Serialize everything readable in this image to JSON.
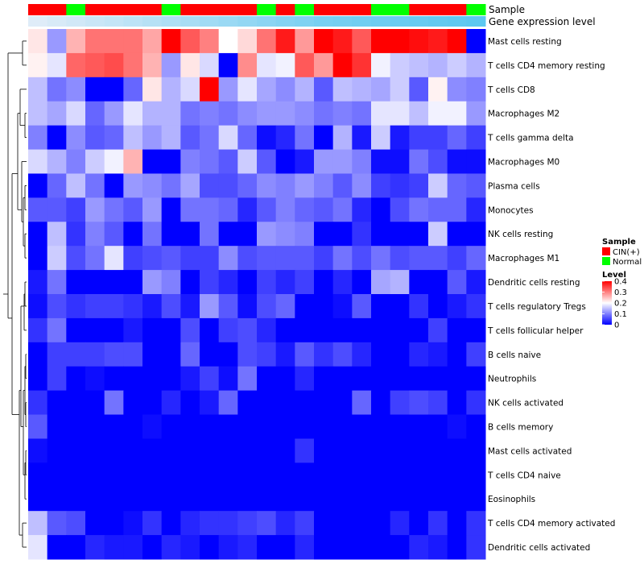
{
  "chart_data": {
    "type": "heatmap",
    "title": "",
    "annotations": {
      "sample": {
        "label": "Sample",
        "values": [
          "CIN(+)",
          "CIN(+)",
          "Normal",
          "CIN(+)",
          "CIN(+)",
          "CIN(+)",
          "CIN(+)",
          "Normal",
          "CIN(+)",
          "CIN(+)",
          "CIN(+)",
          "CIN(+)",
          "Normal",
          "CIN(+)",
          "Normal",
          "CIN(+)",
          "CIN(+)",
          "CIN(+)",
          "Normal",
          "Normal",
          "CIN(+)",
          "CIN(+)",
          "CIN(+)",
          "Normal"
        ]
      },
      "gene_expression": {
        "label": "Gene expression level",
        "values": [
          0.05,
          0.1,
          0.15,
          0.2,
          0.25,
          0.3,
          0.35,
          0.4,
          0.45,
          0.5,
          0.55,
          0.6,
          0.65,
          0.7,
          0.75,
          0.8,
          0.82,
          0.85,
          0.88,
          0.9,
          0.92,
          0.95,
          0.97,
          1.0
        ]
      }
    },
    "rows": [
      "Mast cells resting",
      "T cells CD4 memory resting",
      "T cells CD8",
      "Macrophages M2",
      "T cells gamma delta",
      "Macrophages M0",
      "Plasma cells",
      "Monocytes",
      "NK cells resting",
      "Macrophages M1",
      "Dendritic cells resting",
      "T cells regulatory  Tregs",
      "T cells follicular helper",
      "B cells naive",
      "Neutrophils",
      "NK cells activated",
      "B cells memory",
      "Mast cells activated",
      "T cells CD4 naive",
      "Eosinophils",
      "T cells CD4 memory activated",
      "Dendritic cells activated"
    ],
    "values": [
      [
        0.22,
        0.12,
        0.26,
        0.31,
        0.31,
        0.31,
        0.27,
        0.4,
        0.33,
        0.3,
        0.2,
        0.23,
        0.31,
        0.38,
        0.28,
        0.4,
        0.38,
        0.33,
        0.4,
        0.4,
        0.39,
        0.38,
        0.4,
        0.0
      ],
      [
        0.21,
        0.18,
        0.32,
        0.33,
        0.34,
        0.31,
        0.26,
        0.12,
        0.22,
        0.17,
        0.0,
        0.29,
        0.18,
        0.19,
        0.33,
        0.28,
        0.4,
        0.36,
        0.19,
        0.16,
        0.15,
        0.14,
        0.16,
        0.14
      ],
      [
        0.15,
        0.09,
        0.11,
        0.0,
        0.0,
        0.08,
        0.22,
        0.14,
        0.17,
        0.4,
        0.12,
        0.18,
        0.13,
        0.11,
        0.14,
        0.07,
        0.15,
        0.14,
        0.13,
        0.16,
        0.07,
        0.21,
        0.11,
        0.1
      ],
      [
        0.15,
        0.13,
        0.17,
        0.08,
        0.12,
        0.18,
        0.14,
        0.14,
        0.09,
        0.1,
        0.09,
        0.11,
        0.12,
        0.12,
        0.11,
        0.09,
        0.1,
        0.09,
        0.18,
        0.18,
        0.15,
        0.19,
        0.19,
        0.12
      ],
      [
        0.1,
        0.0,
        0.11,
        0.07,
        0.08,
        0.15,
        0.12,
        0.14,
        0.07,
        0.09,
        0.17,
        0.08,
        0.01,
        0.03,
        0.09,
        0.0,
        0.14,
        0.02,
        0.16,
        0.02,
        0.05,
        0.05,
        0.08,
        0.05
      ],
      [
        0.17,
        0.14,
        0.1,
        0.16,
        0.19,
        0.26,
        0.0,
        0.0,
        0.1,
        0.09,
        0.07,
        0.16,
        0.07,
        0.0,
        0.02,
        0.12,
        0.12,
        0.1,
        0.01,
        0.01,
        0.09,
        0.06,
        0.01,
        0.01
      ],
      [
        0.0,
        0.08,
        0.15,
        0.09,
        0.0,
        0.12,
        0.11,
        0.09,
        0.13,
        0.06,
        0.06,
        0.08,
        0.11,
        0.1,
        0.12,
        0.1,
        0.07,
        0.11,
        0.05,
        0.04,
        0.05,
        0.16,
        0.08,
        0.07
      ],
      [
        0.07,
        0.07,
        0.05,
        0.12,
        0.09,
        0.07,
        0.12,
        0.0,
        0.09,
        0.09,
        0.08,
        0.03,
        0.07,
        0.1,
        0.08,
        0.07,
        0.09,
        0.03,
        0.0,
        0.06,
        0.09,
        0.08,
        0.08,
        0.03
      ],
      [
        0.0,
        0.15,
        0.04,
        0.1,
        0.07,
        0.0,
        0.09,
        0.0,
        0.0,
        0.09,
        0.0,
        0.0,
        0.12,
        0.11,
        0.1,
        0.0,
        0.0,
        0.04,
        0.0,
        0.0,
        0.0,
        0.16,
        0.0,
        0.0
      ],
      [
        0.0,
        0.16,
        0.06,
        0.09,
        0.18,
        0.05,
        0.06,
        0.07,
        0.05,
        0.05,
        0.11,
        0.06,
        0.07,
        0.07,
        0.07,
        0.05,
        0.09,
        0.06,
        0.09,
        0.06,
        0.07,
        0.07,
        0.05,
        0.08
      ],
      [
        0.02,
        0.09,
        0.0,
        0.0,
        0.0,
        0.0,
        0.12,
        0.1,
        0.0,
        0.05,
        0.03,
        0.0,
        0.05,
        0.03,
        0.05,
        0.0,
        0.03,
        0.0,
        0.13,
        0.14,
        0.0,
        0.0,
        0.07,
        0.02
      ],
      [
        0.01,
        0.06,
        0.04,
        0.05,
        0.05,
        0.04,
        0.02,
        0.06,
        0.02,
        0.12,
        0.07,
        0.01,
        0.06,
        0.08,
        0.0,
        0.0,
        0.01,
        0.07,
        0.0,
        0.0,
        0.04,
        0.0,
        0.02,
        0.04
      ],
      [
        0.04,
        0.09,
        0.0,
        0.0,
        0.0,
        0.02,
        0.0,
        0.0,
        0.06,
        0.0,
        0.05,
        0.06,
        0.03,
        0.0,
        0.0,
        0.0,
        0.0,
        0.0,
        0.0,
        0.0,
        0.0,
        0.05,
        0.0,
        0.0
      ],
      [
        0.0,
        0.05,
        0.05,
        0.05,
        0.06,
        0.06,
        0.0,
        0.0,
        0.08,
        0.0,
        0.0,
        0.06,
        0.05,
        0.02,
        0.07,
        0.04,
        0.06,
        0.03,
        0.0,
        0.0,
        0.03,
        0.02,
        0.0,
        0.05
      ],
      [
        0.0,
        0.05,
        0.0,
        0.01,
        0.0,
        0.0,
        0.0,
        0.0,
        0.02,
        0.05,
        0.01,
        0.09,
        0.0,
        0.0,
        0.03,
        0.0,
        0.0,
        0.0,
        0.0,
        0.0,
        0.0,
        0.0,
        0.0,
        0.0
      ],
      [
        0.04,
        0.0,
        0.0,
        0.0,
        0.09,
        0.0,
        0.0,
        0.03,
        0.0,
        0.02,
        0.08,
        0.0,
        0.0,
        0.0,
        0.0,
        0.0,
        0.0,
        0.08,
        0.0,
        0.05,
        0.06,
        0.05,
        0.0,
        0.04
      ],
      [
        0.07,
        0.0,
        0.0,
        0.0,
        0.0,
        0.0,
        0.01,
        0.0,
        0.0,
        0.0,
        0.0,
        0.0,
        0.0,
        0.0,
        0.0,
        0.0,
        0.0,
        0.0,
        0.0,
        0.0,
        0.0,
        0.0,
        0.01,
        0.0
      ],
      [
        0.01,
        0.0,
        0.0,
        0.0,
        0.0,
        0.0,
        0.0,
        0.0,
        0.0,
        0.0,
        0.0,
        0.0,
        0.0,
        0.0,
        0.04,
        0.0,
        0.0,
        0.0,
        0.0,
        0.0,
        0.0,
        0.0,
        0.0,
        0.0
      ],
      [
        0.0,
        0.0,
        0.0,
        0.0,
        0.0,
        0.0,
        0.0,
        0.0,
        0.0,
        0.0,
        0.0,
        0.0,
        0.0,
        0.0,
        0.0,
        0.0,
        0.0,
        0.0,
        0.0,
        0.0,
        0.0,
        0.0,
        0.0,
        0.0
      ],
      [
        0.0,
        0.0,
        0.0,
        0.0,
        0.0,
        0.0,
        0.0,
        0.0,
        0.0,
        0.0,
        0.0,
        0.0,
        0.0,
        0.0,
        0.0,
        0.0,
        0.0,
        0.0,
        0.0,
        0.0,
        0.0,
        0.0,
        0.0,
        0.0
      ],
      [
        0.15,
        0.07,
        0.06,
        0.0,
        0.0,
        0.01,
        0.04,
        0.0,
        0.03,
        0.04,
        0.04,
        0.05,
        0.06,
        0.03,
        0.05,
        0.0,
        0.0,
        0.0,
        0.0,
        0.03,
        0.0,
        0.04,
        0.0,
        0.04
      ],
      [
        0.18,
        0.0,
        0.0,
        0.03,
        0.02,
        0.02,
        0.0,
        0.03,
        0.02,
        0.0,
        0.02,
        0.03,
        0.0,
        0.0,
        0.03,
        0.0,
        0.0,
        0.0,
        0.0,
        0.0,
        0.03,
        0.02,
        0.0,
        0.04
      ]
    ],
    "scale": {
      "min": 0,
      "max": 0.4,
      "low": "#0000FF",
      "mid": "#FFFFFF",
      "high": "#FF0000",
      "midpoint": 0.2
    },
    "legend": {
      "sample_title": "Sample",
      "sample_items": [
        {
          "label": "CIN(+)",
          "color": "#FF0000"
        },
        {
          "label": "Normal",
          "color": "#00FF00"
        }
      ],
      "level_title": "Level",
      "level_ticks": [
        "0.4",
        "0.3",
        "0.2",
        "0.1",
        "0"
      ]
    }
  }
}
